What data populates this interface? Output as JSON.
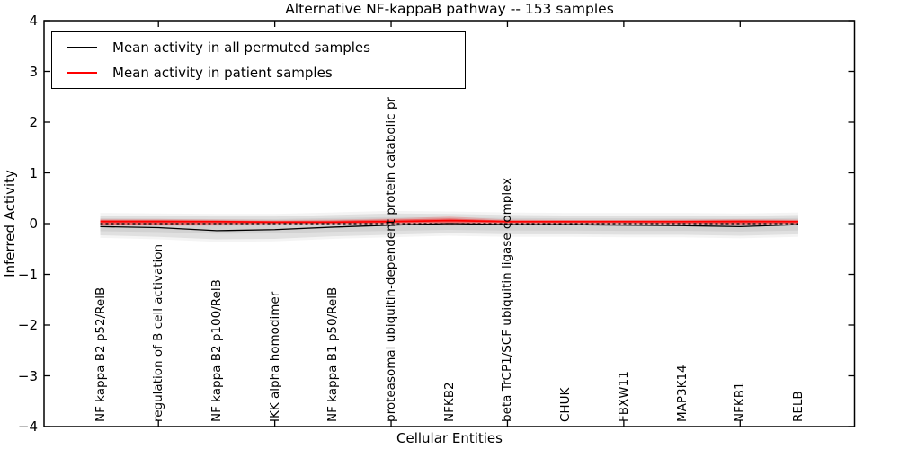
{
  "chart_data": {
    "type": "line",
    "title": "Alternative NF-kappaB pathway -- 153 samples",
    "xlabel": "Cellular Entities",
    "ylabel": "Inferred Activity",
    "ylim": [
      -4,
      4
    ],
    "yticks": [
      "4",
      "3",
      "2",
      "1",
      "0",
      "−1",
      "−2",
      "−3",
      "−4"
    ],
    "grid": false,
    "legend_position": "upper left",
    "categories": [
      "NF kappa B2 p52/RelB",
      "regulation of B cell activation",
      "NF kappa B2 p100/RelB",
      "IKK alpha homodimer",
      "NF kappa B1 p50/RelB",
      "proteasomal ubiquitin-dependent protein catabolic pr",
      "NFKB2",
      "beta TrCP1/SCF ubiquitin ligase complex",
      "CHUK",
      "FBXW11",
      "MAP3K14",
      "NFKB1",
      "RELB"
    ],
    "series": [
      {
        "name": "Mean activity in all permuted samples",
        "color": "#000000",
        "values": [
          -0.06,
          -0.08,
          -0.14,
          -0.12,
          -0.07,
          -0.03,
          0.0,
          -0.02,
          -0.02,
          -0.03,
          -0.04,
          -0.06,
          -0.02
        ]
      },
      {
        "name": "Mean activity in patient samples",
        "color": "#ff0000",
        "values": [
          0.04,
          0.04,
          0.04,
          0.03,
          0.03,
          0.04,
          0.06,
          0.04,
          0.04,
          0.04,
          0.04,
          0.04,
          0.04
        ]
      }
    ],
    "bands": [
      {
        "name": "permuted-samples-range",
        "color": "rgba(0,0,0,0.12)",
        "upper": [
          0.16,
          0.15,
          0.14,
          0.14,
          0.17,
          0.2,
          0.19,
          0.17,
          0.16,
          0.16,
          0.16,
          0.15,
          0.17
        ],
        "lower": [
          -0.23,
          -0.26,
          -0.31,
          -0.3,
          -0.25,
          -0.22,
          -0.19,
          -0.21,
          -0.21,
          -0.22,
          -0.22,
          -0.24,
          -0.21
        ]
      },
      {
        "name": "patient-samples-range-outer",
        "color": "rgba(255,0,0,0.17)",
        "upper": [
          0.09,
          0.09,
          0.08,
          0.07,
          0.08,
          0.1,
          0.14,
          0.08,
          0.07,
          0.07,
          0.08,
          0.09,
          0.08
        ],
        "lower": [
          -0.04,
          -0.04,
          -0.04,
          -0.03,
          -0.03,
          -0.02,
          -0.04,
          -0.02,
          -0.02,
          -0.02,
          -0.03,
          -0.04,
          -0.03
        ]
      },
      {
        "name": "patient-samples-range-inner",
        "color": "rgba(255,0,0,0.42)",
        "upper": [
          0.07,
          0.07,
          0.06,
          0.05,
          0.06,
          0.08,
          0.1,
          0.06,
          0.06,
          0.06,
          0.06,
          0.07,
          0.06
        ],
        "lower": [
          -0.02,
          -0.02,
          -0.01,
          0.0,
          0.0,
          0.01,
          0.01,
          0.01,
          0.01,
          0.01,
          0.0,
          -0.01,
          0.0
        ]
      }
    ],
    "zero_line": {
      "value": 0,
      "style": "dashed",
      "color": "#000000"
    }
  }
}
